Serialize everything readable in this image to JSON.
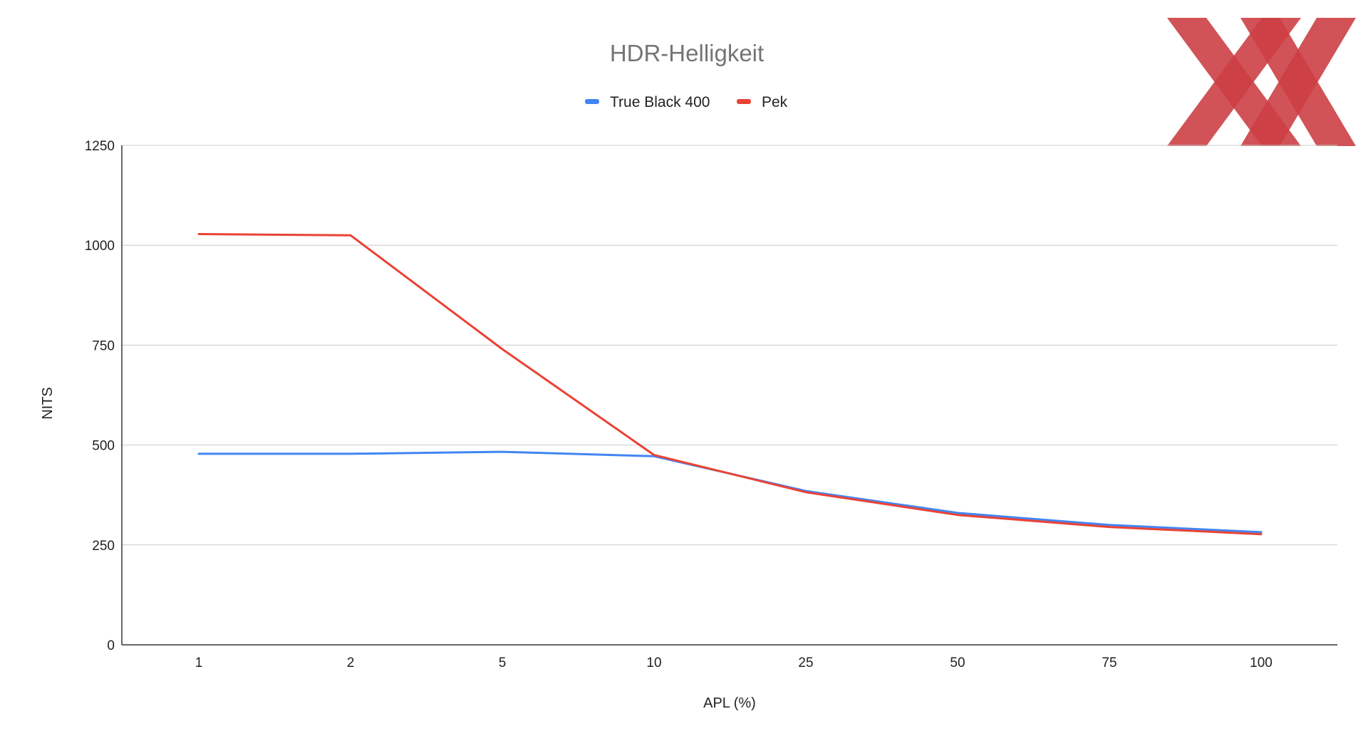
{
  "chart_data": {
    "type": "line",
    "title": "HDR-Helligkeit",
    "xlabel": "APL (%)",
    "ylabel": "NITS",
    "categories": [
      "1",
      "2",
      "5",
      "10",
      "25",
      "50",
      "75",
      "100"
    ],
    "ylim": [
      0,
      1250
    ],
    "yticks": [
      0,
      250,
      500,
      750,
      1000,
      1250
    ],
    "grid": true,
    "legend_position": "top",
    "series": [
      {
        "name": "True Black 400",
        "color": "#4285f4",
        "values": [
          478,
          478,
          483,
          472,
          385,
          330,
          300,
          282
        ]
      },
      {
        "name": "Pek",
        "color": "#ea4335",
        "values": [
          1028,
          1025,
          740,
          475,
          382,
          325,
          295,
          277
        ]
      }
    ]
  },
  "logo": {
    "label": "XX",
    "color": "#cc3f45"
  }
}
